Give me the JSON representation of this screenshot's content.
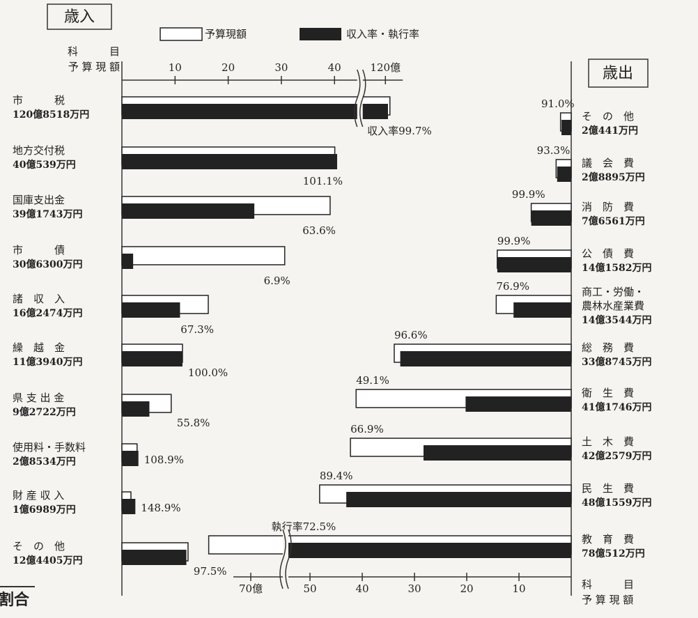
{
  "chart_data": [
    {
      "type": "bar",
      "title": "歳入",
      "direction": "right",
      "ylabel": [
        "科　　　目",
        "予 算 現 額"
      ],
      "categories": [
        "市　　　税",
        "地方交付税",
        "国庫支出金",
        "市　　　債",
        "諸　収　入",
        "繰　越　金",
        "県 支 出 金",
        "使用料・手数料",
        "財 産 収 入",
        "そ　の　他"
      ],
      "series": [
        {
          "name": "予算現額",
          "color": "#ffffff",
          "values": [
            120.8518,
            40.0539,
            39.1743,
            30.63,
            16.2474,
            11.394,
            9.2722,
            2.8534,
            1.6989,
            12.4405
          ],
          "value_labels": [
            "120億8518万円",
            "40億539万円",
            "39億1743万円",
            "30億6300万円",
            "16億2474万円",
            "11億3940万円",
            "9億2722万円",
            "2億8534万円",
            "1億6989万円",
            "12億4405万円"
          ]
        },
        {
          "name": "収入率・執行率",
          "color": "#222222",
          "values": [
            99.7,
            101.1,
            63.6,
            6.9,
            67.3,
            100.0,
            55.8,
            108.9,
            148.9,
            97.5
          ],
          "value_labels": [
            "収入率99.7%",
            "101.1%",
            "63.6%",
            "6.9%",
            "67.3%",
            "100.0%",
            "55.8%",
            "108.9%",
            "148.9%",
            "97.5%"
          ]
        }
      ],
      "xticks": [
        10,
        20,
        30,
        40,
        {
          "value": 120,
          "label": "120億"
        }
      ],
      "axis_break": [
        44,
        116
      ]
    },
    {
      "type": "bar",
      "title": "歳出",
      "direction": "left",
      "ylabel": [
        "科　　　目",
        "予 算 現 額"
      ],
      "categories": [
        "そ　の　他",
        "議　会　費",
        "消　防　費",
        "公　債　費",
        [
          "商工・労働・",
          "農林水産業費"
        ],
        "総　務　費",
        "衛　生　費",
        "土　木　費",
        "民　生　費",
        "教　育　費"
      ],
      "series": [
        {
          "color": "#ffffff",
          "values": [
            2.0441,
            2.8895,
            7.6561,
            14.1582,
            14.3544,
            33.8745,
            41.1746,
            42.2579,
            48.1559,
            78.0512
          ],
          "value_labels": [
            "2億441万円",
            "2億8895万円",
            "7億6561万円",
            "14億1582万円",
            "14億3544万円",
            "33億8745万円",
            "41億1746万円",
            "42億2579万円",
            "48億1559万円",
            "78億512万円"
          ]
        },
        {
          "color": "#222222",
          "values": [
            91.0,
            93.3,
            99.9,
            99.9,
            76.9,
            96.6,
            49.1,
            66.9,
            89.4,
            72.5
          ],
          "value_labels": [
            "91.0%",
            "93.3%",
            "99.9%",
            "99.9%",
            "76.9%",
            "96.6%",
            "49.1%",
            "66.9%",
            "89.4%",
            "執行率72.5%"
          ]
        }
      ],
      "xticks": [
        10,
        20,
        30,
        40,
        50,
        {
          "value": 70,
          "label": "70億"
        }
      ],
      "axis_break": [
        54,
        64
      ]
    }
  ],
  "footer_text": "割合"
}
